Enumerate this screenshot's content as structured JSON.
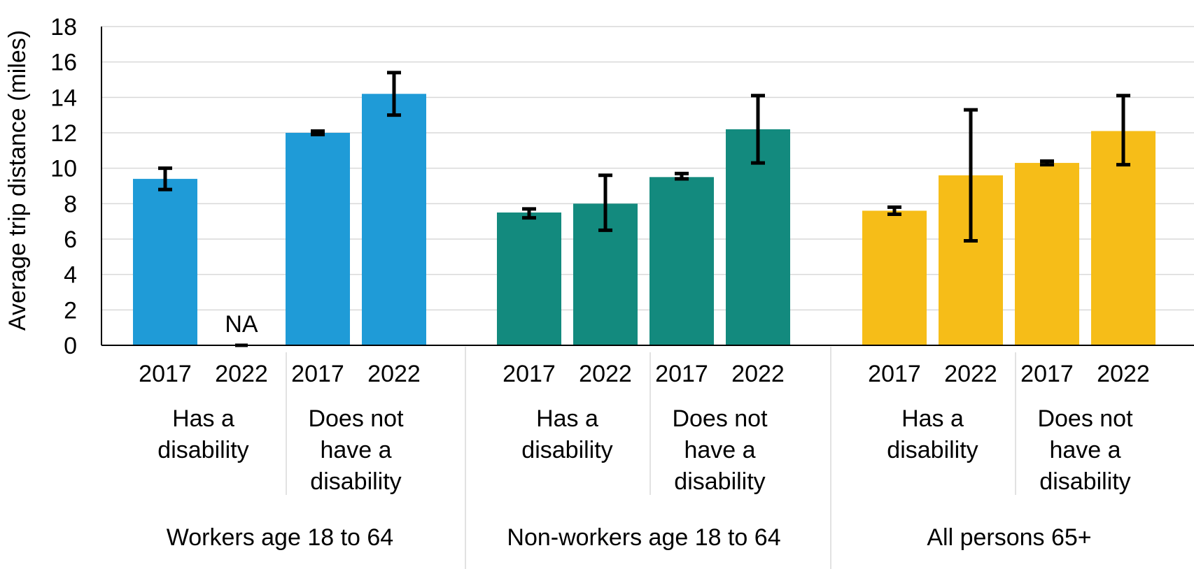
{
  "chart_data": {
    "type": "bar",
    "title": "",
    "xlabel": "",
    "ylabel": "Average trip distance (miles)",
    "ylim": [
      0,
      18
    ],
    "yticks": [
      0,
      2,
      4,
      6,
      8,
      10,
      12,
      14,
      16,
      18
    ],
    "grid": true,
    "legend": "none",
    "groups": [
      {
        "label": "Workers age 18 to 64",
        "color": "#1f9bd7",
        "subgroups": [
          {
            "label_lines": [
              "Has a",
              "disability"
            ],
            "bars": [
              {
                "year": "2017",
                "value": 9.4,
                "err_low": 8.8,
                "err_high": 10.0
              },
              {
                "year": "2022",
                "value": null,
                "na_label": "NA"
              }
            ]
          },
          {
            "label_lines": [
              "Does not",
              "have a",
              "disability"
            ],
            "bars": [
              {
                "year": "2017",
                "value": 12.0,
                "err_low": 11.9,
                "err_high": 12.1
              },
              {
                "year": "2022",
                "value": 14.2,
                "err_low": 13.0,
                "err_high": 15.4
              }
            ]
          }
        ]
      },
      {
        "label": "Non-workers age 18 to 64",
        "color": "#138a7e",
        "subgroups": [
          {
            "label_lines": [
              "Has a",
              "disability"
            ],
            "bars": [
              {
                "year": "2017",
                "value": 7.5,
                "err_low": 7.2,
                "err_high": 7.7
              },
              {
                "year": "2022",
                "value": 8.0,
                "err_low": 6.5,
                "err_high": 9.6
              }
            ]
          },
          {
            "label_lines": [
              "Does not",
              "have a",
              "disability"
            ],
            "bars": [
              {
                "year": "2017",
                "value": 9.5,
                "err_low": 9.4,
                "err_high": 9.7
              },
              {
                "year": "2022",
                "value": 12.2,
                "err_low": 10.3,
                "err_high": 14.1
              }
            ]
          }
        ]
      },
      {
        "label": "All persons 65+",
        "color": "#f6bd18",
        "subgroups": [
          {
            "label_lines": [
              "Has a",
              "disability"
            ],
            "bars": [
              {
                "year": "2017",
                "value": 7.6,
                "err_low": 7.4,
                "err_high": 7.8
              },
              {
                "year": "2022",
                "value": 9.6,
                "err_low": 5.9,
                "err_high": 13.3
              }
            ]
          },
          {
            "label_lines": [
              "Does not",
              "have a",
              "disability"
            ],
            "bars": [
              {
                "year": "2017",
                "value": 10.3,
                "err_low": 10.2,
                "err_high": 10.4
              },
              {
                "year": "2022",
                "value": 12.1,
                "err_low": 10.2,
                "err_high": 14.1
              }
            ]
          }
        ]
      }
    ]
  }
}
